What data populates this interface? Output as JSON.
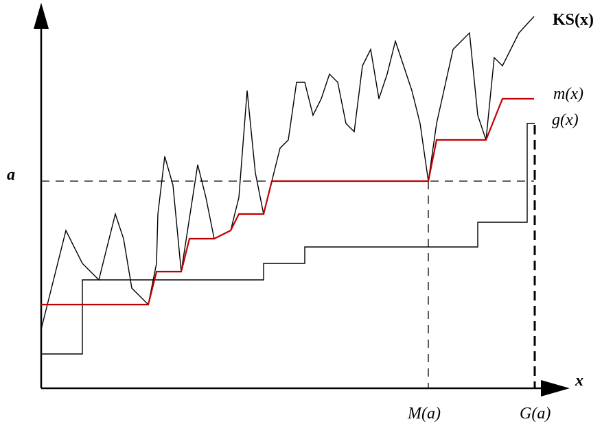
{
  "labels": {
    "ks": "KS(x)",
    "m": "m(x)",
    "g": "g(x)",
    "a": "a",
    "x": "x",
    "Ma": "M(a)",
    "Ga": "G(a)"
  },
  "colors": {
    "axis": "#000000",
    "ks_curve": "#000000",
    "m_curve": "#c00000",
    "g_curve": "#000000",
    "dashed": "#000000"
  }
}
